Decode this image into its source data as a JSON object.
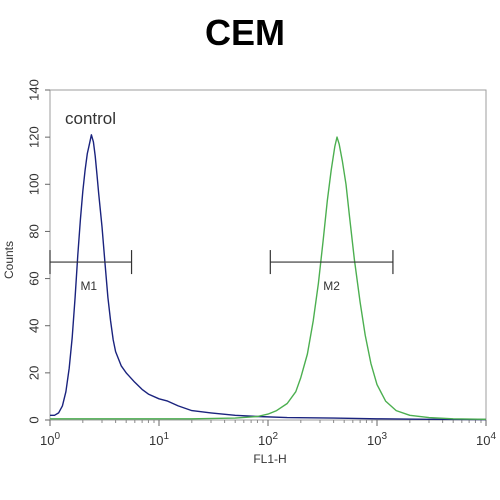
{
  "chart_data": {
    "type": "line",
    "title": "CEM",
    "xlabel": "FL1-H",
    "ylabel": "Counts",
    "xscale": "log",
    "xlim": [
      1,
      10000
    ],
    "ylim": [
      0,
      140
    ],
    "x_ticks": [
      {
        "value": 1,
        "base": "10",
        "exp": "0"
      },
      {
        "value": 10,
        "base": "10",
        "exp": "1"
      },
      {
        "value": 100,
        "base": "10",
        "exp": "2"
      },
      {
        "value": 1000,
        "base": "10",
        "exp": "3"
      },
      {
        "value": 10000,
        "base": "10",
        "exp": "4"
      }
    ],
    "y_ticks": [
      0,
      20,
      40,
      60,
      80,
      100,
      120,
      140
    ],
    "annotation": "control",
    "series": [
      {
        "color": "#1a237e",
        "points": [
          [
            1,
            2
          ],
          [
            1.1,
            2
          ],
          [
            1.2,
            3
          ],
          [
            1.3,
            6
          ],
          [
            1.4,
            12
          ],
          [
            1.5,
            22
          ],
          [
            1.6,
            35
          ],
          [
            1.7,
            52
          ],
          [
            1.8,
            70
          ],
          [
            1.9,
            85
          ],
          [
            2.0,
            97
          ],
          [
            2.1,
            106
          ],
          [
            2.2,
            113
          ],
          [
            2.3,
            117
          ],
          [
            2.4,
            121
          ],
          [
            2.5,
            118
          ],
          [
            2.6,
            112
          ],
          [
            2.7,
            104
          ],
          [
            2.8,
            96
          ],
          [
            3.0,
            82
          ],
          [
            3.2,
            66
          ],
          [
            3.4,
            52
          ],
          [
            3.6,
            42
          ],
          [
            3.8,
            34
          ],
          [
            4.0,
            29
          ],
          [
            4.5,
            23
          ],
          [
            5,
            20
          ],
          [
            6,
            16
          ],
          [
            7,
            13
          ],
          [
            8,
            11
          ],
          [
            10,
            9
          ],
          [
            12,
            8
          ],
          [
            15,
            6
          ],
          [
            20,
            4
          ],
          [
            30,
            3
          ],
          [
            50,
            2
          ],
          [
            80,
            1.5
          ],
          [
            150,
            1
          ],
          [
            400,
            0.8
          ],
          [
            1000,
            0.5
          ],
          [
            3000,
            0.3
          ],
          [
            10000,
            0.2
          ]
        ]
      },
      {
        "color": "#4caf50",
        "points": [
          [
            1,
            0.5
          ],
          [
            20,
            0.5
          ],
          [
            50,
            0.8
          ],
          [
            80,
            1.5
          ],
          [
            100,
            2.5
          ],
          [
            120,
            4
          ],
          [
            150,
            7
          ],
          [
            180,
            12
          ],
          [
            200,
            18
          ],
          [
            230,
            28
          ],
          [
            260,
            42
          ],
          [
            290,
            58
          ],
          [
            320,
            76
          ],
          [
            350,
            93
          ],
          [
            380,
            106
          ],
          [
            410,
            116
          ],
          [
            430,
            120
          ],
          [
            450,
            117
          ],
          [
            480,
            110
          ],
          [
            520,
            100
          ],
          [
            560,
            86
          ],
          [
            620,
            68
          ],
          [
            700,
            50
          ],
          [
            780,
            36
          ],
          [
            880,
            24
          ],
          [
            1000,
            15
          ],
          [
            1200,
            8
          ],
          [
            1500,
            4
          ],
          [
            2000,
            2
          ],
          [
            3000,
            1
          ],
          [
            5000,
            0.5
          ],
          [
            10000,
            0.3
          ]
        ]
      }
    ],
    "markers": [
      {
        "label": "M1",
        "y": 67,
        "x_start": 1,
        "x_end": 5.6
      },
      {
        "label": "M2",
        "y": 67,
        "x_start": 105,
        "x_end": 1400
      }
    ]
  }
}
